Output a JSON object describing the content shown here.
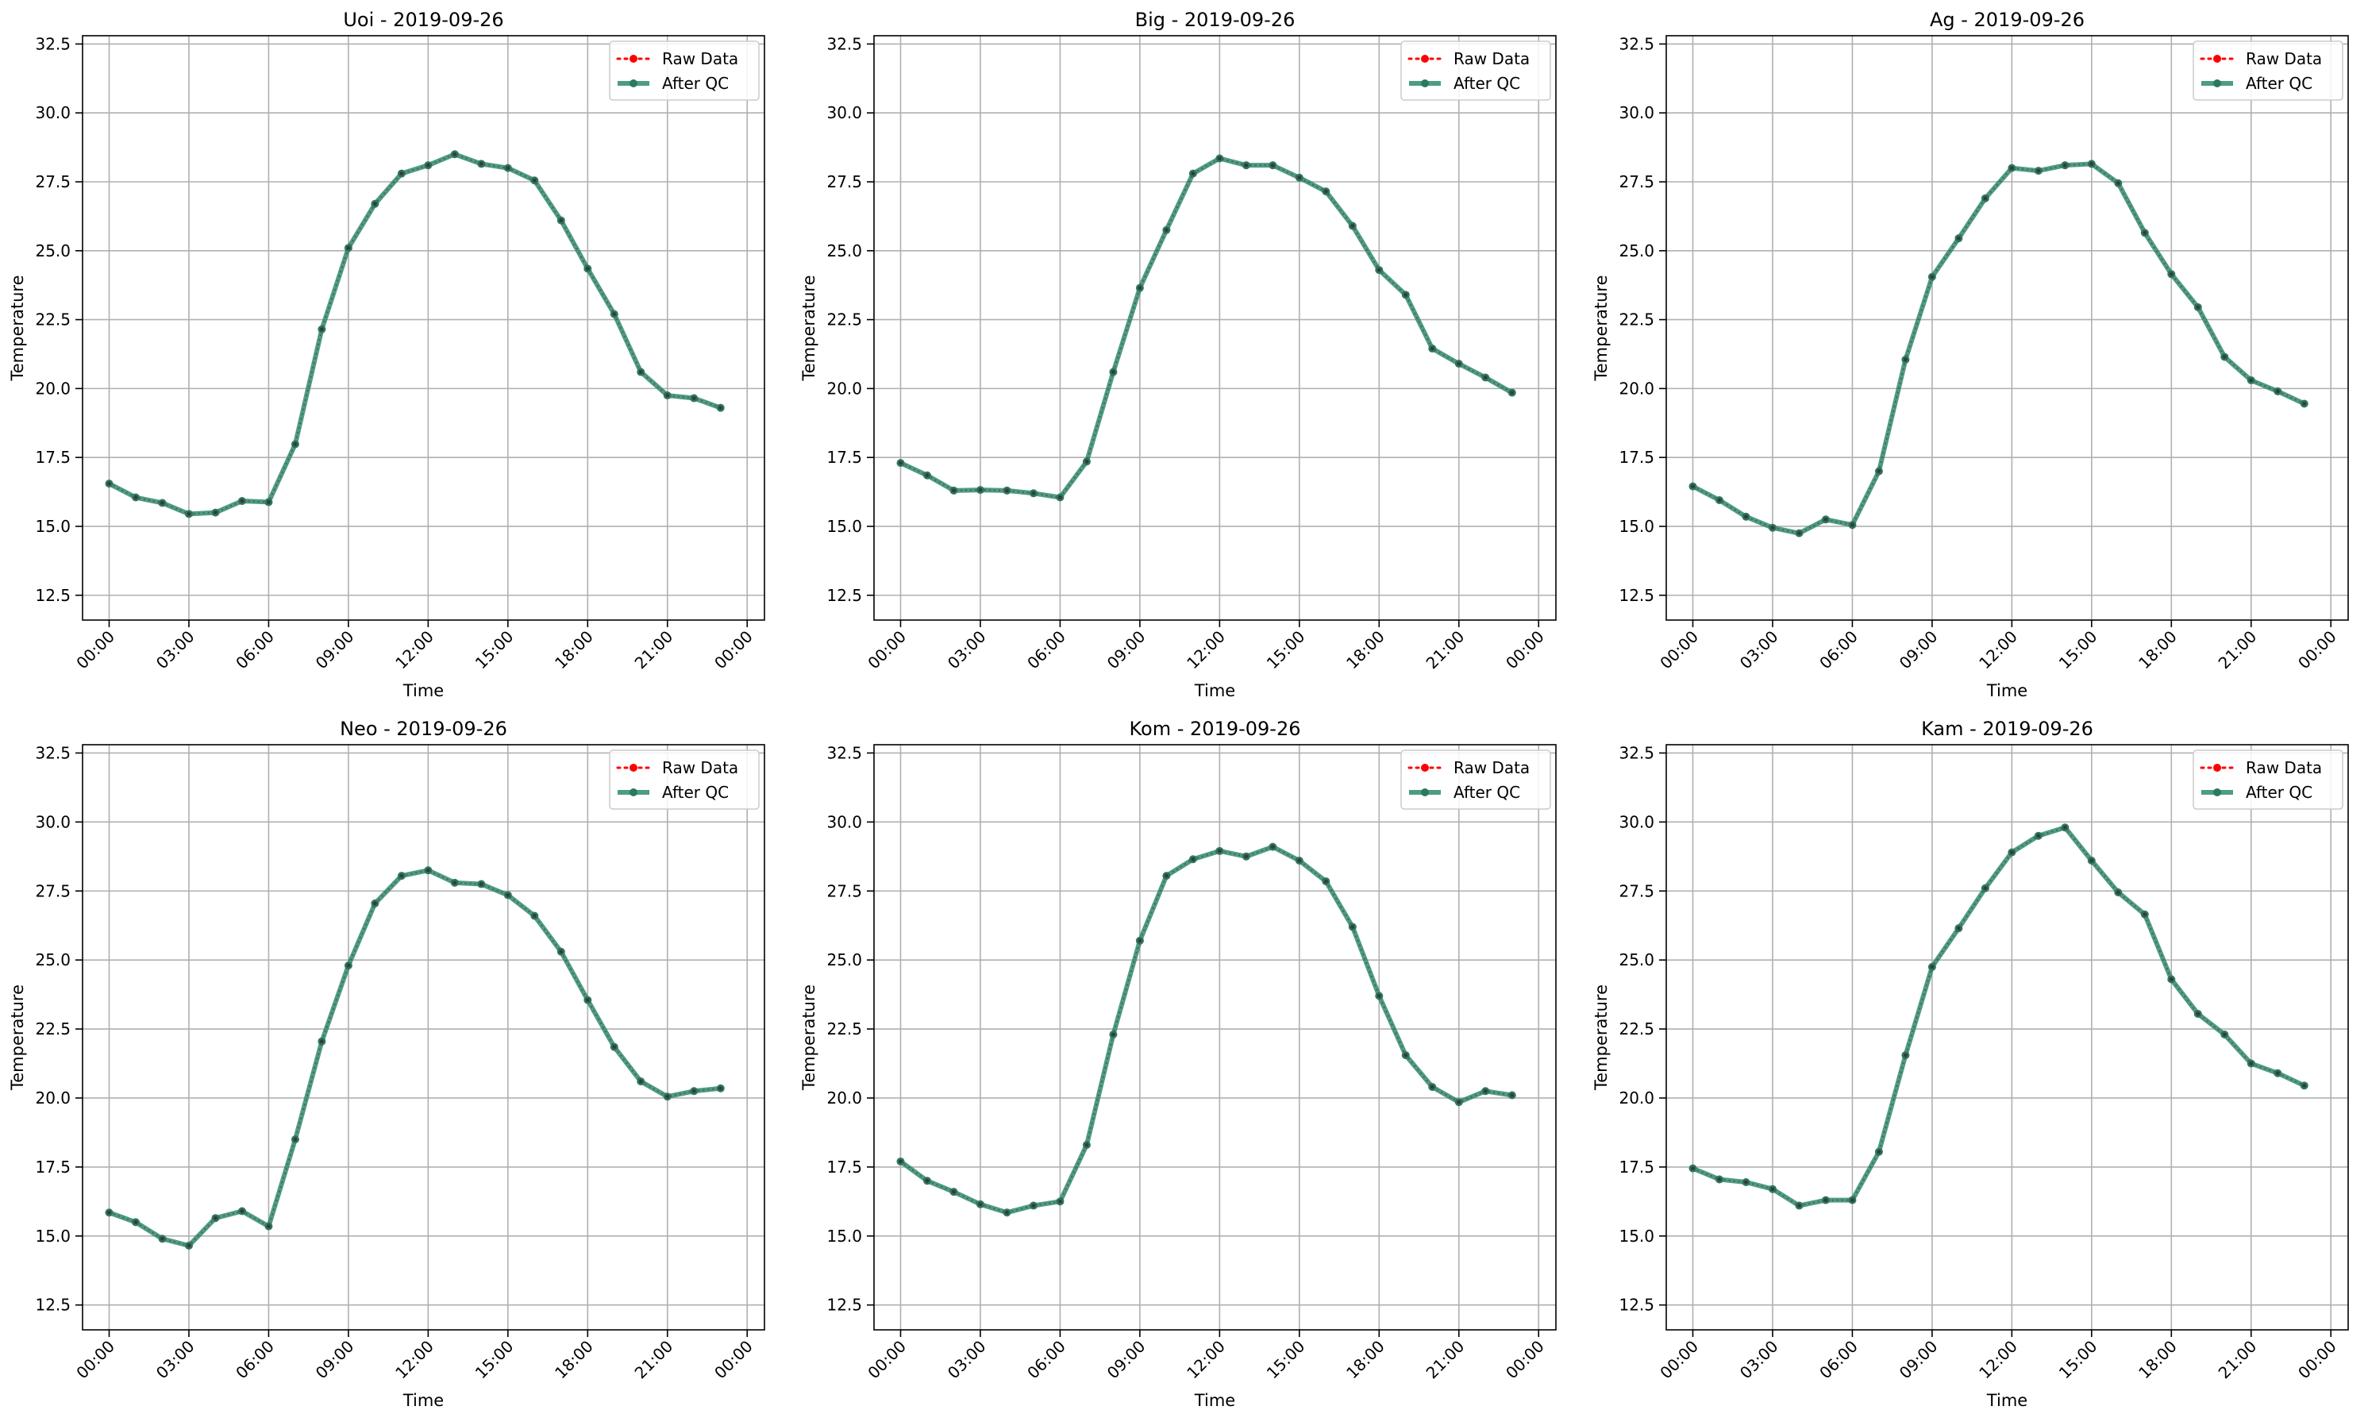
{
  "colors": {
    "raw": "#ff0000",
    "after_qc": "#2e8b6f",
    "after_qc_marker": "#2a7a5e",
    "grid": "#b0b0b0"
  },
  "chart_data": [
    {
      "type": "line",
      "title": "Uoi - 2019-09-26",
      "xlabel": "Time",
      "ylabel": "Temperature",
      "x_ticks": [
        "00:00",
        "03:00",
        "06:00",
        "09:00",
        "12:00",
        "15:00",
        "18:00",
        "21:00",
        "00:00"
      ],
      "y_ticks": [
        "12.5",
        "15.0",
        "17.5",
        "20.0",
        "22.5",
        "25.0",
        "27.5",
        "30.0",
        "32.5"
      ],
      "ylim": [
        11.6,
        32.8
      ],
      "grid": true,
      "legend_position": "top-right",
      "series": [
        {
          "name": "Raw Data",
          "style": "dotted",
          "values": [
            16.55,
            16.05,
            15.85,
            15.45,
            15.5,
            15.92,
            15.88,
            17.98,
            22.15,
            25.1,
            26.7,
            27.8,
            28.1,
            28.5,
            28.15,
            28.0,
            27.55,
            26.1,
            24.35,
            22.7,
            20.6,
            19.75,
            19.65,
            19.3
          ]
        },
        {
          "name": "After QC",
          "style": "solid",
          "values": [
            16.55,
            16.05,
            15.85,
            15.45,
            15.5,
            15.92,
            15.88,
            17.98,
            22.15,
            25.1,
            26.7,
            27.8,
            28.1,
            28.5,
            28.15,
            28.0,
            27.55,
            26.1,
            24.35,
            22.7,
            20.6,
            19.75,
            19.65,
            19.3
          ]
        }
      ]
    },
    {
      "type": "line",
      "title": "Big - 2019-09-26",
      "xlabel": "Time",
      "ylabel": "Temperature",
      "x_ticks": [
        "00:00",
        "03:00",
        "06:00",
        "09:00",
        "12:00",
        "15:00",
        "18:00",
        "21:00",
        "00:00"
      ],
      "y_ticks": [
        "12.5",
        "15.0",
        "17.5",
        "20.0",
        "22.5",
        "25.0",
        "27.5",
        "30.0",
        "32.5"
      ],
      "ylim": [
        11.6,
        32.8
      ],
      "grid": true,
      "legend_position": "top-right",
      "series": [
        {
          "name": "Raw Data",
          "style": "dotted",
          "values": [
            17.3,
            16.85,
            16.3,
            16.32,
            16.3,
            16.2,
            16.05,
            17.35,
            20.6,
            23.65,
            25.75,
            27.8,
            28.35,
            28.1,
            28.1,
            27.65,
            27.15,
            25.9,
            24.3,
            23.4,
            21.45,
            20.9,
            20.4,
            19.85
          ]
        },
        {
          "name": "After QC",
          "style": "solid",
          "values": [
            17.3,
            16.85,
            16.3,
            16.32,
            16.3,
            16.2,
            16.05,
            17.35,
            20.6,
            23.65,
            25.75,
            27.8,
            28.35,
            28.1,
            28.1,
            27.65,
            27.15,
            25.9,
            24.3,
            23.4,
            21.45,
            20.9,
            20.4,
            19.85
          ]
        }
      ]
    },
    {
      "type": "line",
      "title": "Ag - 2019-09-26",
      "xlabel": "Time",
      "ylabel": "Temperature",
      "x_ticks": [
        "00:00",
        "03:00",
        "06:00",
        "09:00",
        "12:00",
        "15:00",
        "18:00",
        "21:00",
        "00:00"
      ],
      "y_ticks": [
        "12.5",
        "15.0",
        "17.5",
        "20.0",
        "22.5",
        "25.0",
        "27.5",
        "30.0",
        "32.5"
      ],
      "ylim": [
        11.6,
        32.8
      ],
      "grid": true,
      "legend_position": "top-right",
      "series": [
        {
          "name": "Raw Data",
          "style": "dotted",
          "values": [
            16.45,
            15.95,
            15.35,
            14.95,
            14.75,
            15.25,
            15.05,
            17.0,
            21.05,
            24.05,
            25.45,
            26.9,
            28.0,
            27.9,
            28.1,
            28.15,
            27.45,
            25.65,
            24.15,
            22.95,
            21.15,
            20.3,
            19.9,
            19.45
          ]
        },
        {
          "name": "After QC",
          "style": "solid",
          "values": [
            16.45,
            15.95,
            15.35,
            14.95,
            14.75,
            15.25,
            15.05,
            17.0,
            21.05,
            24.05,
            25.45,
            26.9,
            28.0,
            27.9,
            28.1,
            28.15,
            27.45,
            25.65,
            24.15,
            22.95,
            21.15,
            20.3,
            19.9,
            19.45
          ]
        }
      ]
    },
    {
      "type": "line",
      "title": "Neo - 2019-09-26",
      "xlabel": "Time",
      "ylabel": "Temperature",
      "x_ticks": [
        "00:00",
        "03:00",
        "06:00",
        "09:00",
        "12:00",
        "15:00",
        "18:00",
        "21:00",
        "00:00"
      ],
      "y_ticks": [
        "12.5",
        "15.0",
        "17.5",
        "20.0",
        "22.5",
        "25.0",
        "27.5",
        "30.0",
        "32.5"
      ],
      "ylim": [
        11.6,
        32.8
      ],
      "grid": true,
      "legend_position": "top-right",
      "series": [
        {
          "name": "Raw Data",
          "style": "dotted",
          "values": [
            15.85,
            15.5,
            14.9,
            14.65,
            15.65,
            15.9,
            15.35,
            18.5,
            22.05,
            24.8,
            27.05,
            28.05,
            28.25,
            27.8,
            27.75,
            27.35,
            26.6,
            25.3,
            23.55,
            21.85,
            20.6,
            20.05,
            20.25,
            20.35
          ]
        },
        {
          "name": "After QC",
          "style": "solid",
          "values": [
            15.85,
            15.5,
            14.9,
            14.65,
            15.65,
            15.9,
            15.35,
            18.5,
            22.05,
            24.8,
            27.05,
            28.05,
            28.25,
            27.8,
            27.75,
            27.35,
            26.6,
            25.3,
            23.55,
            21.85,
            20.6,
            20.05,
            20.25,
            20.35
          ]
        }
      ]
    },
    {
      "type": "line",
      "title": "Kom - 2019-09-26",
      "xlabel": "Time",
      "ylabel": "Temperature",
      "x_ticks": [
        "00:00",
        "03:00",
        "06:00",
        "09:00",
        "12:00",
        "15:00",
        "18:00",
        "21:00",
        "00:00"
      ],
      "y_ticks": [
        "12.5",
        "15.0",
        "17.5",
        "20.0",
        "22.5",
        "25.0",
        "27.5",
        "30.0",
        "32.5"
      ],
      "ylim": [
        11.6,
        32.8
      ],
      "grid": true,
      "legend_position": "top-right",
      "series": [
        {
          "name": "Raw Data",
          "style": "dotted",
          "values": [
            17.7,
            17.0,
            16.6,
            16.15,
            15.85,
            16.1,
            16.25,
            18.3,
            22.3,
            25.7,
            28.05,
            28.65,
            28.95,
            28.75,
            29.1,
            28.6,
            27.85,
            26.2,
            23.7,
            21.55,
            20.4,
            19.85,
            20.25,
            20.1
          ]
        },
        {
          "name": "After QC",
          "style": "solid",
          "values": [
            17.7,
            17.0,
            16.6,
            16.15,
            15.85,
            16.1,
            16.25,
            18.3,
            22.3,
            25.7,
            28.05,
            28.65,
            28.95,
            28.75,
            29.1,
            28.6,
            27.85,
            26.2,
            23.7,
            21.55,
            20.4,
            19.85,
            20.25,
            20.1
          ]
        }
      ]
    },
    {
      "type": "line",
      "title": "Kam - 2019-09-26",
      "xlabel": "Time",
      "ylabel": "Temperature",
      "x_ticks": [
        "00:00",
        "03:00",
        "06:00",
        "09:00",
        "12:00",
        "15:00",
        "18:00",
        "21:00",
        "00:00"
      ],
      "y_ticks": [
        "12.5",
        "15.0",
        "17.5",
        "20.0",
        "22.5",
        "25.0",
        "27.5",
        "30.0",
        "32.5"
      ],
      "ylim": [
        11.6,
        32.8
      ],
      "grid": true,
      "legend_position": "top-right",
      "series": [
        {
          "name": "Raw Data",
          "style": "dotted",
          "values": [
            17.45,
            17.05,
            16.95,
            16.7,
            16.1,
            16.3,
            16.3,
            18.05,
            21.55,
            24.75,
            26.15,
            27.6,
            28.9,
            29.5,
            29.8,
            28.6,
            27.45,
            26.65,
            24.3,
            23.05,
            22.3,
            21.25,
            20.9,
            20.45
          ]
        },
        {
          "name": "After QC",
          "style": "solid",
          "values": [
            17.45,
            17.05,
            16.95,
            16.7,
            16.1,
            16.3,
            16.3,
            18.05,
            21.55,
            24.75,
            26.15,
            27.6,
            28.9,
            29.5,
            29.8,
            28.6,
            27.45,
            26.65,
            24.3,
            23.05,
            22.3,
            21.25,
            20.9,
            20.45
          ]
        }
      ]
    }
  ]
}
